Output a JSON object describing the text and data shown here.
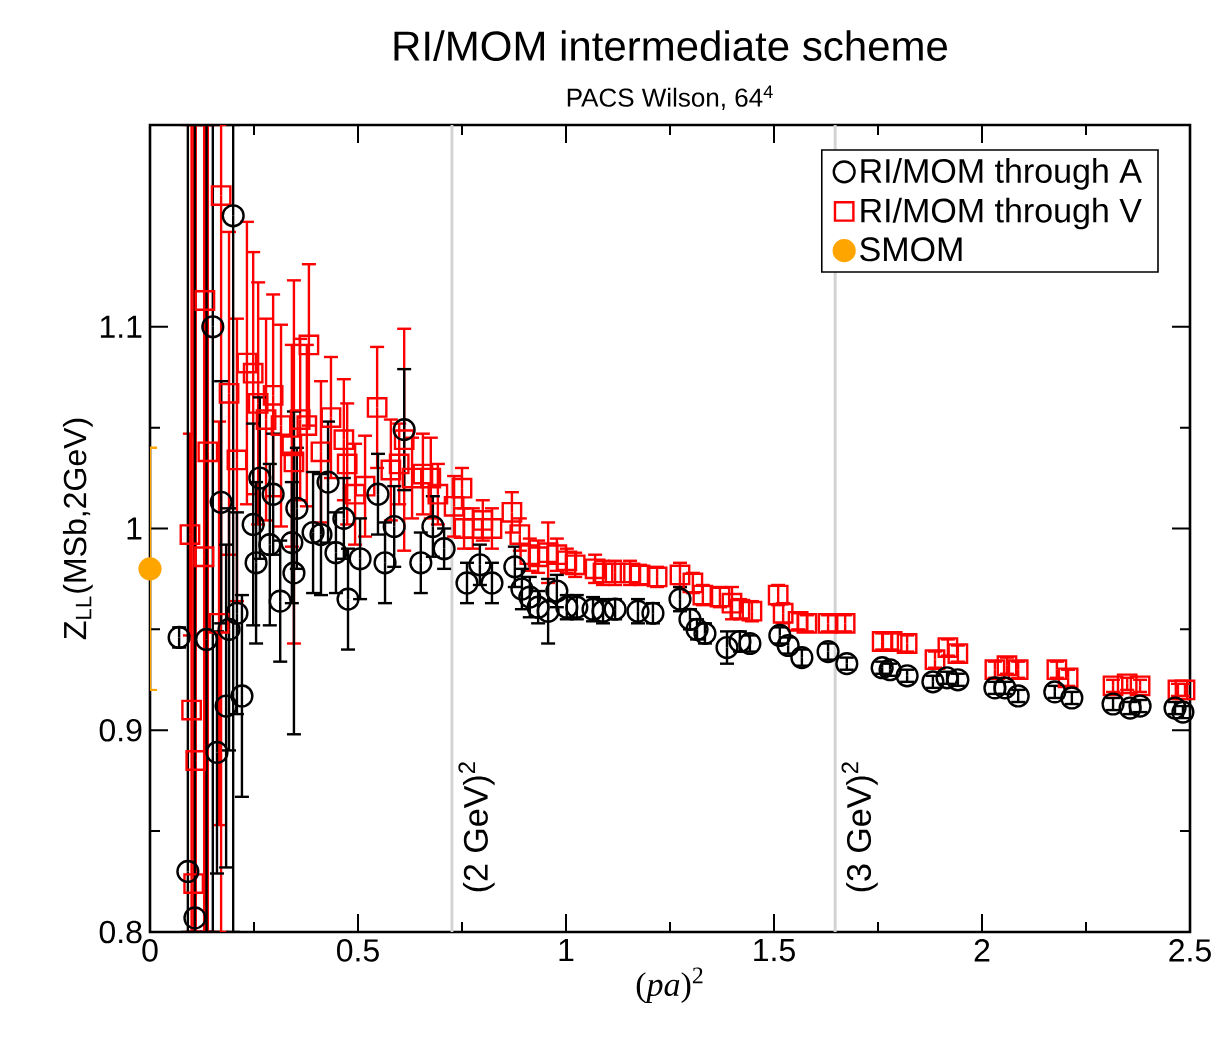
{
  "chart_data": {
    "type": "scatter",
    "title": "RI/MOM intermediate scheme",
    "subtitle": "PACS Wilson, 64$^{4}$",
    "xlabel": "(*pa*)$^{2}$",
    "ylabel": "Z$_{LL}$(MSb,2GeV)",
    "xlim": [
      0,
      2.5
    ],
    "ylim": [
      0.8,
      1.2
    ],
    "xticks": [
      0,
      0.5,
      1,
      1.5,
      2,
      2.5
    ],
    "yticks": [
      0.8,
      0.9,
      1,
      1.1
    ],
    "legend": "top right",
    "grid": false,
    "ref_lines": [
      {
        "axis": "x",
        "value": 0.726,
        "label": "(2 GeV)$^{2}$",
        "color": "#d3d3d3"
      },
      {
        "axis": "x",
        "value": 1.647,
        "label": "(3 GeV)$^{2}$",
        "color": "#d3d3d3"
      }
    ],
    "series": [
      {
        "name": "RI/MOM through A",
        "color": "#000000",
        "marker": "circle",
        "x": [
          0.07,
          0.091,
          0.108,
          0.151,
          0.2,
          0.136,
          0.161,
          0.183,
          0.171,
          0.19,
          0.209,
          0.221,
          0.248,
          0.255,
          0.264,
          0.288,
          0.296,
          0.313,
          0.341,
          0.346,
          0.353,
          0.392,
          0.411,
          0.428,
          0.447,
          0.466,
          0.476,
          0.505,
          0.548,
          0.565,
          0.587,
          0.611,
          0.651,
          0.68,
          0.707,
          0.762,
          0.793,
          0.822,
          0.877,
          0.894,
          0.913,
          0.933,
          0.957,
          0.978,
          1.002,
          1.026,
          1.065,
          1.089,
          1.118,
          1.173,
          1.209,
          1.274,
          1.298,
          1.315,
          1.334,
          1.387,
          1.418,
          1.442,
          1.514,
          1.534,
          1.567,
          1.63,
          1.675,
          1.76,
          1.779,
          1.82,
          1.882,
          1.916,
          1.942,
          2.031,
          2.055,
          2.087,
          2.175,
          2.216,
          2.315,
          2.356,
          2.38,
          2.464,
          2.483
        ],
        "values": [
          0.946,
          0.83,
          0.807,
          1.1,
          1.155,
          0.945,
          0.889,
          0.912,
          1.013,
          0.95,
          0.958,
          0.917,
          1.002,
          0.983,
          1.025,
          0.992,
          1.017,
          0.964,
          0.993,
          0.978,
          1.01,
          0.998,
          0.997,
          1.023,
          0.988,
          1.005,
          0.965,
          0.985,
          1.017,
          0.983,
          1.001,
          1.049,
          0.983,
          1.001,
          0.99,
          0.973,
          0.982,
          0.973,
          0.981,
          0.97,
          0.966,
          0.961,
          0.959,
          0.969,
          0.961,
          0.961,
          0.96,
          0.959,
          0.96,
          0.959,
          0.958,
          0.965,
          0.955,
          0.95,
          0.948,
          0.941,
          0.944,
          0.943,
          0.947,
          0.942,
          0.936,
          0.939,
          0.933,
          0.931,
          0.93,
          0.927,
          0.924,
          0.926,
          0.925,
          0.921,
          0.921,
          0.917,
          0.919,
          0.916,
          0.913,
          0.911,
          0.912,
          0.911,
          0.909
        ],
        "errors": [
          0.005,
          [
            0.8,
            1.2
          ],
          [
            0.8,
            1.2
          ],
          [
            0.8,
            1.2
          ],
          [
            0.8,
            1.2
          ],
          [
            0.8,
            1.2
          ],
          0.06,
          0.08,
          0.06,
          0.06,
          0.05,
          0.05,
          0.05,
          0.04,
          0.04,
          0.04,
          0.03,
          0.03,
          0.03,
          0.08,
          0.03,
          0.03,
          0.03,
          0.03,
          0.02,
          0.02,
          0.025,
          0.02,
          0.02,
          0.02,
          0.02,
          0.03,
          0.015,
          0.015,
          0.01,
          0.01,
          0.01,
          0.01,
          0.01,
          0.01,
          0.01,
          0.008,
          0.016,
          0.008,
          0.006,
          0.006,
          0.006,
          0.006,
          0.005,
          0.006,
          0.005,
          0.006,
          0.005,
          0.005,
          0.005,
          0.008,
          0.005,
          0.004,
          0.004,
          0.004,
          0.004,
          0.004,
          0.003,
          0.003,
          0.003,
          0.003,
          0.003,
          0.003,
          0.003,
          0.003,
          0.003,
          0.003,
          0.003,
          0.003,
          0.003,
          0.003,
          0.003,
          0.003,
          0.003
        ]
      },
      {
        "name": "RI/MOM through V",
        "color": "#ff0000",
        "marker": "square",
        "x": [
          0.096,
          0.1,
          0.11,
          0.105,
          0.132,
          0.171,
          0.139,
          0.13,
          0.166,
          0.19,
          0.209,
          0.233,
          0.248,
          0.26,
          0.279,
          0.296,
          0.315,
          0.341,
          0.346,
          0.361,
          0.377,
          0.382,
          0.411,
          0.435,
          0.466,
          0.474,
          0.493,
          0.517,
          0.546,
          0.579,
          0.599,
          0.611,
          0.63,
          0.656,
          0.675,
          0.692,
          0.731,
          0.75,
          0.755,
          0.776,
          0.8,
          0.822,
          0.87,
          0.889,
          0.913,
          0.933,
          0.957,
          0.978,
          1.002,
          1.022,
          1.07,
          1.089,
          1.118,
          1.154,
          1.178,
          1.219,
          1.274,
          1.305,
          1.329,
          1.37,
          1.399,
          1.418,
          1.447,
          1.51,
          1.522,
          1.558,
          1.579,
          1.63,
          1.671,
          1.76,
          1.784,
          1.82,
          1.887,
          1.918,
          1.942,
          2.031,
          2.06,
          2.087,
          2.18,
          2.207,
          2.315,
          2.349,
          2.38,
          2.471,
          2.488
        ],
        "values": [
          0.997,
          0.91,
          0.885,
          0.824,
          1.113,
          1.165,
          1.038,
          0.986,
          0.953,
          1.067,
          1.034,
          1.082,
          1.077,
          1.062,
          1.054,
          1.066,
          1.051,
          1.041,
          1.033,
          1.054,
          1.051,
          1.091,
          1.038,
          1.055,
          1.044,
          1.032,
          1.017,
          1.021,
          1.06,
          1.029,
          1.032,
          1.044,
          1.025,
          1.027,
          1.025,
          1.017,
          1.011,
          1.02,
          1.0,
          1.0,
          1.004,
          1.0,
          1.008,
          0.997,
          0.987,
          0.986,
          0.988,
          0.987,
          0.984,
          0.982,
          0.98,
          0.978,
          0.978,
          0.978,
          0.977,
          0.976,
          0.977,
          0.973,
          0.967,
          0.966,
          0.963,
          0.96,
          0.959,
          0.967,
          0.958,
          0.954,
          0.953,
          0.953,
          0.953,
          0.944,
          0.944,
          0.943,
          0.935,
          0.941,
          0.938,
          0.93,
          0.932,
          0.93,
          0.93,
          0.926,
          0.922,
          0.923,
          0.922,
          0.92,
          0.92
        ],
        "errors": [
          0.05,
          [
            0.8,
            1.2
          ],
          [
            0.8,
            1.2
          ],
          [
            0.8,
            1.2
          ],
          [
            0.8,
            1.2
          ],
          [
            0.8,
            1.2
          ],
          [
            0.8,
            1.2
          ],
          [
            0.8,
            1.2
          ],
          0.1,
          0.08,
          0.07,
          0.07,
          0.06,
          0.06,
          0.05,
          0.05,
          0.05,
          0.05,
          0.09,
          0.04,
          0.04,
          0.04,
          0.035,
          0.03,
          0.03,
          0.03,
          0.025,
          0.025,
          0.03,
          0.025,
          0.02,
          0.055,
          0.02,
          0.02,
          0.02,
          0.015,
          0.015,
          0.01,
          0.01,
          0.01,
          0.01,
          0.01,
          0.01,
          0.008,
          0.008,
          0.008,
          0.015,
          0.008,
          0.006,
          0.006,
          0.007,
          0.006,
          0.006,
          0.006,
          0.005,
          0.005,
          0.006,
          0.005,
          0.005,
          0.005,
          0.008,
          0.005,
          0.005,
          0.005,
          0.005,
          0.004,
          0.004,
          0.004,
          0.004,
          0.004,
          0.004,
          0.004,
          0.004,
          0.004,
          0.004,
          0.004,
          0.004,
          0.004,
          0.004,
          0.004,
          0.003,
          0.003,
          0.003,
          0.003,
          0.003
        ]
      },
      {
        "name": "SMOM",
        "color": "#ffa500",
        "marker": "circle",
        "x": [
          0
        ],
        "values": [
          0.98
        ],
        "errors": [
          [
            0.92,
            1.04
          ]
        ]
      }
    ]
  }
}
